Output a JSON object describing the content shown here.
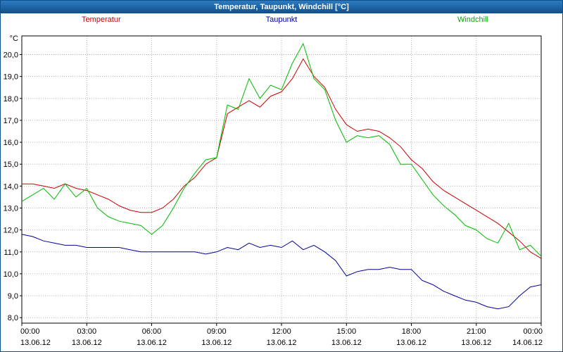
{
  "window": {
    "title": "Temperatur, Taupunkt, Windchill [°C]"
  },
  "legend": {
    "temperatur_label": "Temperatur",
    "taupunkt_label": "Taupunkt",
    "windchill_label": "Windchill"
  },
  "colors": {
    "title_bar": "#0d4f8b",
    "temperatur": "#cc0000",
    "taupunkt": "#000099",
    "windchill": "#00bb00",
    "grid": "#b0b0b0",
    "axis": "#000000"
  },
  "chart_data": {
    "type": "line",
    "title": "Temperatur, Taupunkt, Windchill [°C]",
    "y_axis_unit": "°C",
    "ymin": 7.75,
    "ymax": 20.85,
    "y_tick_min": 8,
    "y_tick_max": 20,
    "y_tick_step": 1,
    "grid": true,
    "x_interval_hours": 0.5,
    "x_tick_hours": [
      0,
      3,
      6,
      9,
      12,
      15,
      18,
      21,
      24
    ],
    "x_tick_labels": [
      "00:00",
      "03:00",
      "06:00",
      "09:00",
      "12:00",
      "15:00",
      "18:00",
      "21:00",
      "00:00"
    ],
    "x_date_labels": [
      "13.06.12",
      "13.06.12",
      "13.06.12",
      "13.06.12",
      "13.06.12",
      "13.06.12",
      "13.06.12",
      "13.06.12",
      "14.06.12"
    ],
    "series": [
      {
        "name": "Temperatur",
        "color": "#cc0000",
        "values": [
          14.1,
          14.1,
          14.0,
          13.9,
          14.1,
          13.9,
          13.8,
          13.6,
          13.4,
          13.1,
          12.9,
          12.8,
          12.8,
          13.0,
          13.4,
          14.0,
          14.4,
          15.0,
          15.3,
          17.3,
          17.6,
          17.9,
          17.6,
          18.1,
          18.3,
          18.9,
          19.8,
          19.0,
          18.5,
          17.5,
          16.8,
          16.5,
          16.6,
          16.5,
          16.2,
          15.8,
          15.2,
          14.8,
          14.2,
          13.8,
          13.5,
          13.2,
          12.9,
          12.6,
          12.3,
          11.9,
          11.5,
          11.0,
          10.7
        ]
      },
      {
        "name": "Taupunkt",
        "color": "#000099",
        "values": [
          11.8,
          11.7,
          11.5,
          11.4,
          11.3,
          11.3,
          11.2,
          11.2,
          11.2,
          11.2,
          11.1,
          11.0,
          11.0,
          11.0,
          11.0,
          11.0,
          11.0,
          10.9,
          11.0,
          11.2,
          11.1,
          11.4,
          11.2,
          11.3,
          11.2,
          11.5,
          11.1,
          11.3,
          11.0,
          10.6,
          9.9,
          10.1,
          10.2,
          10.2,
          10.3,
          10.2,
          10.2,
          9.7,
          9.5,
          9.2,
          9.0,
          8.8,
          8.7,
          8.5,
          8.4,
          8.5,
          9.0,
          9.4,
          9.5
        ]
      },
      {
        "name": "Windchill",
        "color": "#00bb00",
        "values": [
          13.3,
          13.6,
          13.9,
          13.4,
          14.1,
          13.5,
          13.9,
          13.0,
          12.6,
          12.4,
          12.3,
          12.2,
          11.8,
          12.2,
          13.0,
          13.9,
          14.6,
          15.2,
          15.3,
          17.7,
          17.5,
          18.9,
          18.0,
          18.6,
          18.4,
          19.6,
          20.5,
          18.9,
          18.4,
          17.0,
          16.0,
          16.3,
          16.2,
          16.3,
          15.9,
          15.0,
          15.0,
          14.3,
          13.6,
          13.1,
          12.7,
          12.2,
          12.0,
          11.6,
          11.4,
          12.3,
          11.1,
          11.3,
          10.8
        ]
      }
    ]
  }
}
